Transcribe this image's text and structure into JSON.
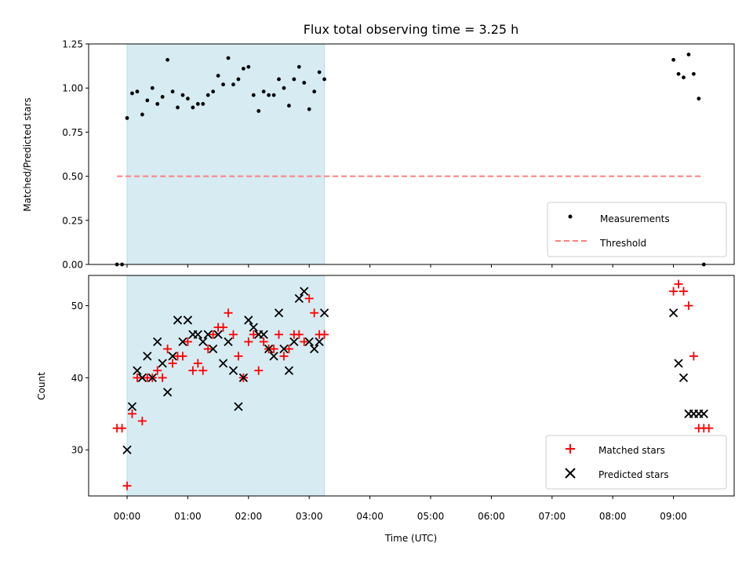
{
  "chart_data": [
    {
      "type": "scatter",
      "title": "Flux total observing time = 3.25 h",
      "ylabel": "Matched/Predicted stars",
      "xlim": [
        "23:22",
        "10:00"
      ],
      "ylim": [
        0,
        1.25
      ],
      "yticks": [
        "0.00",
        "0.25",
        "0.50",
        "0.75",
        "1.00",
        "1.25"
      ],
      "shaded_region": {
        "from": "00:00",
        "to": "03:15",
        "color": "#add8e6"
      },
      "legend_position": "lower-right",
      "series": [
        {
          "name": "Measurements",
          "marker": "dot",
          "color": "#000000",
          "x": [
            "23:50",
            "23:55",
            "00:00",
            "00:05",
            "00:10",
            "00:15",
            "00:20",
            "00:25",
            "00:30",
            "00:35",
            "00:40",
            "00:45",
            "00:50",
            "00:55",
            "01:00",
            "01:05",
            "01:10",
            "01:15",
            "01:20",
            "01:25",
            "01:30",
            "01:35",
            "01:40",
            "01:45",
            "01:50",
            "01:55",
            "02:00",
            "02:05",
            "02:10",
            "02:15",
            "02:20",
            "02:25",
            "02:30",
            "02:35",
            "02:40",
            "02:45",
            "02:50",
            "02:55",
            "03:00",
            "03:05",
            "03:10",
            "03:15",
            "09:00",
            "09:05",
            "09:10",
            "09:15",
            "09:20",
            "09:25",
            "09:30"
          ],
          "y": [
            0.0,
            0.0,
            0.83,
            0.97,
            0.98,
            0.85,
            0.93,
            1.0,
            0.91,
            0.95,
            1.16,
            0.98,
            0.89,
            0.96,
            0.94,
            0.89,
            0.91,
            0.91,
            0.96,
            0.98,
            1.07,
            1.02,
            1.17,
            1.02,
            1.05,
            1.11,
            1.12,
            0.96,
            0.87,
            0.98,
            0.96,
            0.96,
            1.05,
            1.0,
            0.9,
            1.05,
            1.12,
            1.03,
            0.88,
            0.98,
            1.09,
            1.05,
            1.16,
            1.08,
            1.06,
            1.19,
            1.08,
            0.94,
            0.0
          ]
        },
        {
          "name": "Threshold",
          "style": "dashed",
          "color": "#ff7f7f",
          "x": [
            "23:50",
            "09:30"
          ],
          "y": [
            0.5,
            0.5
          ]
        }
      ]
    },
    {
      "type": "scatter",
      "xlabel": "Time (UTC)",
      "ylabel": "Count",
      "xlim": [
        "23:22",
        "10:00"
      ],
      "ylim": [
        23.6,
        54.2
      ],
      "xticks": [
        "00:00",
        "01:00",
        "02:00",
        "03:00",
        "04:00",
        "05:00",
        "06:00",
        "07:00",
        "08:00",
        "09:00"
      ],
      "yticks": [
        "30",
        "40",
        "50"
      ],
      "shaded_region": {
        "from": "00:00",
        "to": "03:15",
        "color": "#add8e6"
      },
      "legend_position": "lower-right",
      "series": [
        {
          "name": "Matched stars",
          "marker": "plus",
          "color": "#ff0000",
          "x": [
            "23:50",
            "23:55",
            "00:00",
            "00:05",
            "00:10",
            "00:15",
            "00:20",
            "00:25",
            "00:30",
            "00:35",
            "00:40",
            "00:45",
            "00:50",
            "00:55",
            "01:00",
            "01:05",
            "01:10",
            "01:15",
            "01:20",
            "01:25",
            "01:30",
            "01:35",
            "01:40",
            "01:45",
            "01:50",
            "01:55",
            "02:00",
            "02:05",
            "02:10",
            "02:15",
            "02:20",
            "02:25",
            "02:30",
            "02:35",
            "02:40",
            "02:45",
            "02:50",
            "02:55",
            "03:00",
            "03:05",
            "03:10",
            "03:15",
            "09:00",
            "09:05",
            "09:10",
            "09:15",
            "09:20",
            "09:25",
            "09:30",
            "09:35"
          ],
          "y": [
            33,
            33,
            25,
            35,
            40,
            34,
            40,
            40,
            41,
            40,
            44,
            42,
            43,
            43,
            45,
            41,
            42,
            41,
            44,
            46,
            47,
            47,
            49,
            46,
            43,
            40,
            45,
            46,
            41,
            45,
            44,
            44,
            46,
            43,
            44,
            46,
            46,
            45,
            51,
            49,
            46,
            46,
            52,
            53,
            52,
            50,
            43,
            33,
            33,
            33
          ]
        },
        {
          "name": "Predicted stars",
          "marker": "x",
          "color": "#000000",
          "x": [
            "00:00",
            "00:05",
            "00:10",
            "00:15",
            "00:20",
            "00:25",
            "00:30",
            "00:35",
            "00:40",
            "00:45",
            "00:50",
            "00:55",
            "01:00",
            "01:05",
            "01:10",
            "01:15",
            "01:20",
            "01:25",
            "01:30",
            "01:35",
            "01:40",
            "01:45",
            "01:50",
            "01:55",
            "02:00",
            "02:05",
            "02:10",
            "02:15",
            "02:20",
            "02:25",
            "02:30",
            "02:35",
            "02:40",
            "02:45",
            "02:50",
            "02:55",
            "03:00",
            "03:05",
            "03:10",
            "03:15",
            "09:00",
            "09:05",
            "09:10",
            "09:15",
            "09:20",
            "09:25",
            "09:30"
          ],
          "y": [
            30,
            36,
            41,
            40,
            43,
            40,
            45,
            42,
            38,
            43,
            48,
            45,
            48,
            46,
            46,
            45,
            46,
            44,
            46,
            42,
            45,
            41,
            36,
            40,
            48,
            47,
            46,
            46,
            44,
            43,
            49,
            44,
            41,
            45,
            51,
            52,
            45,
            44,
            45,
            49,
            49,
            42,
            40,
            35,
            35,
            35,
            35
          ]
        }
      ]
    }
  ]
}
